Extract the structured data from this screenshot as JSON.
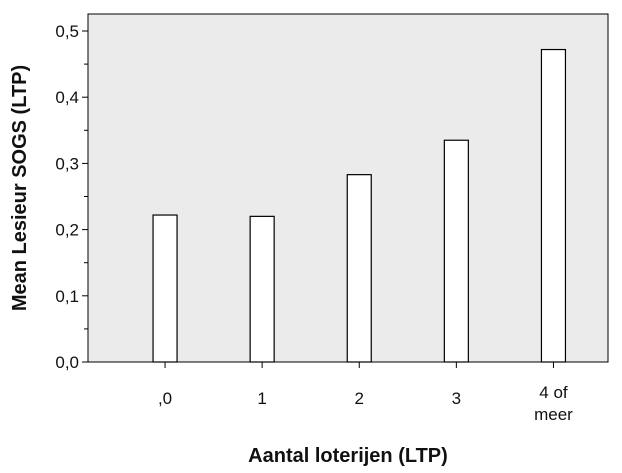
{
  "chart_data": {
    "type": "bar",
    "title": "",
    "xlabel": "Aantal loterijen (LTP)",
    "ylabel": "Mean Lesieur SOGS (LTP)",
    "categories": [
      ",0",
      "1",
      "2",
      "3",
      "4 of meer"
    ],
    "values": [
      0.222,
      0.22,
      0.283,
      0.335,
      0.472
    ],
    "ylim": [
      0,
      0.5
    ],
    "yticks": [
      0.0,
      0.1,
      0.2,
      0.3,
      0.4,
      0.5
    ],
    "ytick_labels": [
      "0,0",
      "0,1",
      "0,2",
      "0,3",
      "0,4",
      "0,5"
    ],
    "grid": false,
    "legend": "none",
    "colors": {
      "plot_background": "#ebebeb",
      "bar_fill": "#ffffff",
      "bar_stroke": "#000000"
    }
  }
}
